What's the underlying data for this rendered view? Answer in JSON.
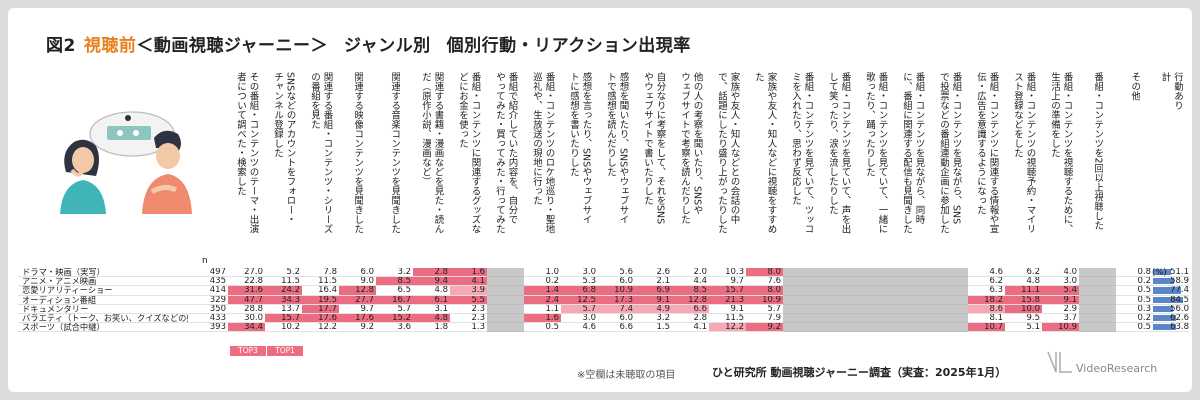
{
  "title": {
    "prefix": "図2",
    "accent": "視聴前",
    "bracket": "＜動画視聴ジャーニー＞",
    "section": "ジャンル別",
    "subtitle": "個別行動・リアクション出現率"
  },
  "n_label": "n",
  "unit": "(%)",
  "footnote": "※空欄は未聴取の項目",
  "source": "ひと研究所 動画視聴ジャーニー調査（実査：2025年1月）",
  "logo_text": "VideoResearch",
  "badges": [
    "TOP3",
    "TOP1"
  ],
  "colors": {
    "accent": "#e8821e",
    "highlight_top": "#ec6d82",
    "highlight": "#f7a8b4",
    "blank": "#c8c8c8",
    "total_bar": "#5b87c8"
  },
  "columns": [
    [
      "その番組・コンテンツのテーマ・出演",
      "者について調べた・検索した"
    ],
    [
      "SNSなどのアカウントをフォロー・",
      "チャンネル登録した"
    ],
    [
      "関連する番組・コンテンツ・シリーズ",
      "の番組を見た"
    ],
    [
      "関連する映像コンテンツを見聞きした"
    ],
    [
      "関連する音楽コンテンツを見聞きした"
    ],
    [
      "関連する書籍・漫画などを見た・読ん",
      "だ（原作小説、漫画など）"
    ],
    [
      "番組・コンテンツに関連するグッズな",
      "どにお金を使った"
    ],
    [
      "番組で紹介していた内容を、自分で",
      "やってみた・買ってみた・行ってみた"
    ],
    [
      "番組・コンテンツのロケ地巡り・聖地",
      "巡礼や、生放送の現地に行った"
    ],
    [
      "感想を言ったり、SNSやウェブサイ",
      "トに感想を書いたりした"
    ],
    [
      "感想を聞いたり、SNSやウェブサイ",
      "トで感想を読んだりした"
    ],
    [
      "自分なりに考察をして、それをSNS",
      "やウェブサイトで書いたりした"
    ],
    [
      "他の人の考察を聞いたり、SNSや",
      "ウェブサイトで考察を読んだりした"
    ],
    [
      "家族や友人・知人などとの会話の中",
      "で、話題にしたり盛り上がったりした"
    ],
    [
      "家族や友人・知人などに視聴をすすめ",
      "た"
    ],
    [
      "番組・コンテンツを見ていて、ツッコ",
      "ミを入れたり、思わず反応した"
    ],
    [
      "番組・コンテンツを見ていて、声を出",
      "して笑ったり、涙を流したりした"
    ],
    [
      "番組・コンテンツを見ていて、一緒に",
      "歌ったり、踊ったりした"
    ],
    [
      "番組・コンテンツを見ながら、同時",
      "に、番組に関連する配信も見聞きした"
    ],
    [
      "番組・コンテンツを見ながら、SNS",
      "で投票などの番組連動企画に参加した"
    ],
    [
      "番組・コンテンツに関連する情報や宣",
      "伝・広告を意識するようになった"
    ],
    [
      "番組・コンテンツの視聴予約・マイリ",
      "スト登録などをした"
    ],
    [
      "番組・コンテンツを視聴するために、",
      "生活上の準備をした"
    ],
    [
      "番組・コンテンツを2回以上視聴した"
    ],
    [
      "その他"
    ],
    [
      "行動あり",
      "計"
    ]
  ],
  "chart_data": {
    "type": "table",
    "title": "視聴前＜動画視聴ジャーニー＞ ジャンル別 個別行動・リアクション出現率",
    "unit": "%",
    "categories": [
      "ドラマ・映画（実写）",
      "アニメ・アニメ映画",
      "恋愛リアリティーショー",
      "オーディション番組",
      "ドキュメンタリー",
      "バラエティ（トーク、お笑い、クイズなどの娯楽）",
      "スポーツ（試合中継）"
    ],
    "n": [
      "497",
      "435",
      "414",
      "329",
      "350",
      "433",
      "393"
    ],
    "rows": [
      [
        "27.0",
        "5.2",
        "7.8",
        "6.0",
        "3.2",
        "2.8",
        "1.6",
        "",
        "1.0",
        "3.0",
        "5.6",
        "2.6",
        "2.0",
        "10.3",
        "8.0",
        "",
        "",
        "",
        "",
        "",
        "4.6",
        "6.2",
        "4.0",
        "",
        "0.8",
        "51.1"
      ],
      [
        "22.8",
        "11.5",
        "11.5",
        "9.0",
        "8.5",
        "9.4",
        "4.1",
        "",
        "0.2",
        "5.3",
        "6.0",
        "2.1",
        "4.4",
        "9.7",
        "7.6",
        "",
        "",
        "",
        "",
        "",
        "6.2",
        "4.8",
        "3.0",
        "",
        "0.2",
        "58.9"
      ],
      [
        "31.6",
        "24.2",
        "16.4",
        "12.8",
        "6.5",
        "4.8",
        "3.9",
        "",
        "1.4",
        "6.8",
        "10.9",
        "6.9",
        "8.5",
        "15.7",
        "8.0",
        "",
        "",
        "",
        "",
        "",
        "6.3",
        "11.1",
        "5.4",
        "",
        "0.5",
        "77.4"
      ],
      [
        "47.7",
        "34.3",
        "19.5",
        "27.7",
        "16.7",
        "6.1",
        "5.5",
        "",
        "2.4",
        "12.5",
        "17.3",
        "9.1",
        "12.8",
        "21.3",
        "10.9",
        "",
        "",
        "",
        "",
        "",
        "18.2",
        "15.8",
        "9.1",
        "",
        "0.5",
        "84.5"
      ],
      [
        "28.8",
        "13.7",
        "17.7",
        "9.7",
        "5.7",
        "3.1",
        "2.3",
        "",
        "1.1",
        "5.7",
        "7.4",
        "4.9",
        "6.6",
        "9.1",
        "5.7",
        "",
        "",
        "",
        "",
        "",
        "8.6",
        "10.0",
        "2.9",
        "",
        "0.3",
        "56.0"
      ],
      [
        "30.0",
        "15.7",
        "17.6",
        "17.6",
        "15.2",
        "4.8",
        "2.3",
        "",
        "1.6",
        "3.0",
        "6.0",
        "3.2",
        "2.8",
        "11.5",
        "7.9",
        "",
        "",
        "",
        "",
        "",
        "8.1",
        "9.5",
        "3.7",
        "",
        "0.2",
        "62.6"
      ],
      [
        "34.4",
        "10.2",
        "12.2",
        "9.2",
        "3.6",
        "1.8",
        "1.3",
        "",
        "0.5",
        "4.6",
        "6.6",
        "1.5",
        "4.1",
        "12.2",
        "9.2",
        "",
        "",
        "",
        "",
        "",
        "10.7",
        "5.1",
        "10.9",
        "",
        "0.5",
        "63.8"
      ]
    ],
    "highlights": [
      [
        "",
        "",
        "",
        "",
        "",
        "top",
        "top",
        "",
        "",
        "",
        "",
        "",
        "",
        "",
        "top",
        "",
        "",
        "",
        "",
        "",
        "",
        "",
        "",
        "",
        "",
        ""
      ],
      [
        "",
        "",
        "",
        "",
        "top",
        "top",
        "top",
        "",
        "",
        "",
        "",
        "",
        "",
        "",
        "",
        "",
        "",
        "",
        "",
        "",
        "",
        "",
        "",
        "",
        "",
        ""
      ],
      [
        "top",
        "top",
        "",
        "top",
        "",
        "",
        "hi",
        "",
        "top",
        "top",
        "top",
        "top",
        "top",
        "top",
        "top",
        "",
        "",
        "",
        "",
        "",
        "",
        "top",
        "top",
        "",
        "",
        ""
      ],
      [
        "top",
        "top",
        "top",
        "top",
        "top",
        "top",
        "top",
        "",
        "top",
        "top",
        "top",
        "top",
        "top",
        "top",
        "top",
        "",
        "",
        "",
        "",
        "",
        "top",
        "top",
        "top",
        "",
        "",
        ""
      ],
      [
        "",
        "",
        "top",
        "",
        "",
        "",
        "",
        "",
        "",
        "hi",
        "hi",
        "hi",
        "hi",
        "",
        "",
        "",
        "",
        "",
        "",
        "",
        "hi",
        "top",
        "",
        "",
        "",
        ""
      ],
      [
        "",
        "top",
        "top",
        "top",
        "top",
        "top",
        "",
        "",
        "top",
        "",
        "",
        "",
        "",
        "",
        "",
        "",
        "",
        "",
        "",
        "",
        "",
        "",
        "",
        "",
        "",
        ""
      ],
      [
        "top",
        "",
        "",
        "",
        "",
        "",
        "",
        "",
        "",
        "",
        "",
        "",
        "",
        "hi",
        "top",
        "",
        "",
        "",
        "",
        "",
        "top",
        "",
        "top",
        "",
        "",
        ""
      ]
    ]
  }
}
